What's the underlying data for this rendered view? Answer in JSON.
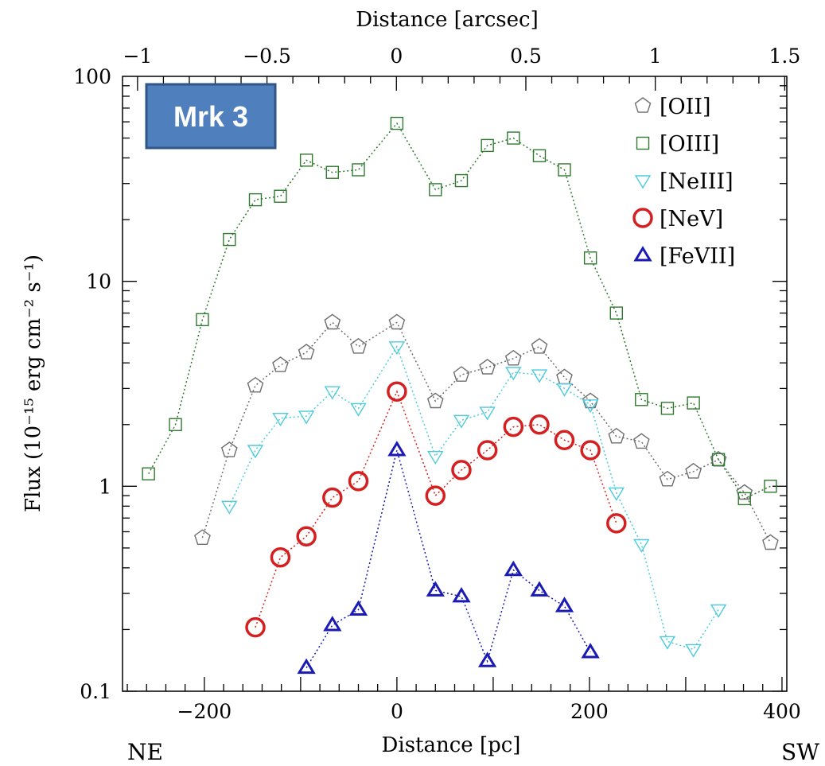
{
  "chart_data": {
    "type": "scatter",
    "title": "",
    "badge": "Mrk 3",
    "xlabel": "Distance [pc]",
    "x2label": "Distance [arcsec]",
    "ylabel": "Flux (10⁻¹⁵ erg cm⁻² s⁻¹)",
    "left_label": "NE",
    "right_label": "SW",
    "xlim": [
      -285,
      405
    ],
    "x2lim": [
      -1.058,
      1.508
    ],
    "ylim": [
      0.1,
      100
    ],
    "yscale": "log",
    "x_ticks": [
      -200,
      0,
      200,
      400
    ],
    "x_tick_labels": [
      "−200",
      "0",
      "200",
      "400"
    ],
    "x2_ticks": [
      -1,
      -0.5,
      0,
      0.5,
      1,
      1.5
    ],
    "x2_tick_labels": [
      "−1",
      "−0.5",
      "0",
      "0.5",
      "1",
      "1.5"
    ],
    "y_ticks": [
      0.1,
      1,
      10,
      100
    ],
    "y_tick_labels": [
      "0.1",
      "1",
      "10",
      "100"
    ],
    "grid": false,
    "legend_position": "top-right",
    "series": [
      {
        "name": "[OII]",
        "color": "#6e6e6e",
        "marker": "pentagon",
        "points": [
          [
            -202,
            0.56
          ],
          [
            -174,
            1.5
          ],
          [
            -147,
            3.1
          ],
          [
            -121,
            3.9
          ],
          [
            -94,
            4.5
          ],
          [
            -67,
            6.3
          ],
          [
            -40,
            4.8
          ],
          [
            0,
            6.3
          ],
          [
            40,
            2.6
          ],
          [
            67,
            3.5
          ],
          [
            94,
            3.8
          ],
          [
            121,
            4.2
          ],
          [
            148,
            4.8
          ],
          [
            174,
            3.4
          ],
          [
            201,
            2.6
          ],
          [
            228,
            1.75
          ],
          [
            254,
            1.65
          ],
          [
            281,
            1.08
          ],
          [
            308,
            1.18
          ],
          [
            334,
            1.35
          ],
          [
            361,
            0.93
          ],
          [
            388,
            0.53
          ]
        ]
      },
      {
        "name": "[OIII]",
        "color": "#2f7a2f",
        "marker": "square",
        "points": [
          [
            -258,
            1.15
          ],
          [
            -230,
            2.0
          ],
          [
            -202,
            6.5
          ],
          [
            -174,
            16
          ],
          [
            -147,
            25
          ],
          [
            -121,
            26
          ],
          [
            -94,
            39
          ],
          [
            -67,
            34
          ],
          [
            -40,
            35
          ],
          [
            0,
            59
          ],
          [
            40,
            28
          ],
          [
            67,
            31
          ],
          [
            94,
            46
          ],
          [
            121,
            50
          ],
          [
            148,
            41
          ],
          [
            174,
            35
          ],
          [
            201,
            13
          ],
          [
            228,
            7.0
          ],
          [
            254,
            2.65
          ],
          [
            281,
            2.4
          ],
          [
            308,
            2.55
          ],
          [
            334,
            1.35
          ],
          [
            361,
            0.87
          ],
          [
            388,
            1.0
          ]
        ]
      },
      {
        "name": "[NeIII]",
        "color": "#4ccbdc",
        "marker": "triangle-down",
        "points": [
          [
            -174,
            0.8
          ],
          [
            -147,
            1.5
          ],
          [
            -121,
            2.15
          ],
          [
            -94,
            2.2
          ],
          [
            -67,
            2.9
          ],
          [
            -40,
            2.4
          ],
          [
            0,
            4.8
          ],
          [
            40,
            1.4
          ],
          [
            67,
            2.1
          ],
          [
            94,
            2.3
          ],
          [
            121,
            3.6
          ],
          [
            148,
            3.5
          ],
          [
            174,
            3.0
          ],
          [
            201,
            2.5
          ],
          [
            228,
            0.93
          ],
          [
            254,
            0.52
          ],
          [
            281,
            0.175
          ],
          [
            308,
            0.16
          ],
          [
            334,
            0.25
          ]
        ]
      },
      {
        "name": "[NeV]",
        "color": "#d42020",
        "marker": "circle",
        "points": [
          [
            -147,
            0.205
          ],
          [
            -121,
            0.45
          ],
          [
            -94,
            0.57
          ],
          [
            -67,
            0.88
          ],
          [
            -40,
            1.06
          ],
          [
            0,
            2.9
          ],
          [
            40,
            0.9
          ],
          [
            67,
            1.2
          ],
          [
            94,
            1.5
          ],
          [
            121,
            1.95
          ],
          [
            148,
            2.0
          ],
          [
            174,
            1.68
          ],
          [
            201,
            1.5
          ],
          [
            228,
            0.66
          ]
        ]
      },
      {
        "name": "[FeVII]",
        "color": "#1a1ab4",
        "marker": "triangle-up",
        "points": [
          [
            -94,
            0.13
          ],
          [
            -67,
            0.21
          ],
          [
            -40,
            0.25
          ],
          [
            0,
            1.5
          ],
          [
            40,
            0.31
          ],
          [
            67,
            0.29
          ],
          [
            94,
            0.14
          ],
          [
            121,
            0.39
          ],
          [
            148,
            0.31
          ],
          [
            174,
            0.26
          ],
          [
            201,
            0.155
          ]
        ]
      }
    ]
  }
}
